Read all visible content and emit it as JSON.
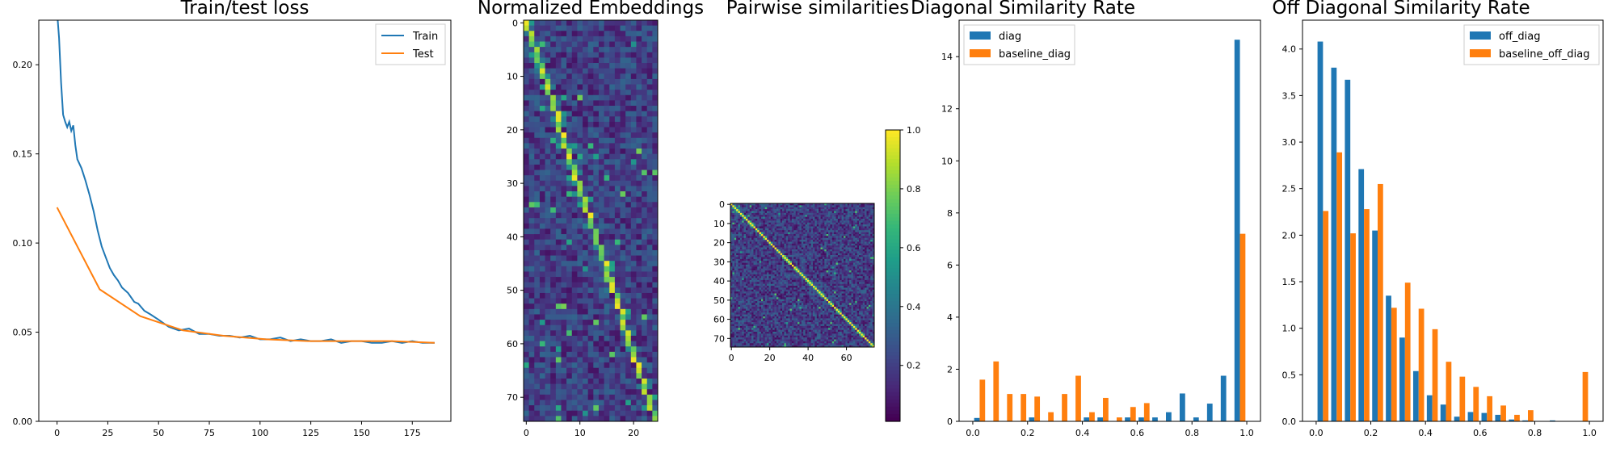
{
  "chart_data": [
    {
      "type": "line",
      "title": "Train/test loss",
      "xlabel": "",
      "ylabel": "",
      "xlim": [
        -9,
        194
      ],
      "ylim": [
        0,
        0.225
      ],
      "xticks": [
        0,
        25,
        50,
        75,
        100,
        125,
        150,
        175
      ],
      "yticks": [
        0.0,
        0.05,
        0.1,
        0.15,
        0.2
      ],
      "ytick_labels": [
        "0.00",
        "0.05",
        "0.10",
        "0.15",
        "0.20"
      ],
      "legend_position": "top-right",
      "series": [
        {
          "name": "Train",
          "color": "#1f77b4",
          "x": [
            0,
            1,
            2,
            3,
            4,
            5,
            6,
            7,
            8,
            9,
            10,
            12,
            14,
            16,
            18,
            20,
            22,
            24,
            26,
            28,
            30,
            32,
            35,
            38,
            40,
            43,
            46,
            50,
            55,
            60,
            65,
            70,
            75,
            80,
            85,
            90,
            95,
            100,
            105,
            110,
            115,
            120,
            125,
            130,
            135,
            140,
            145,
            150,
            155,
            160,
            165,
            170,
            175,
            180,
            186
          ],
          "y": [
            0.23,
            0.215,
            0.19,
            0.172,
            0.168,
            0.165,
            0.168,
            0.163,
            0.166,
            0.155,
            0.147,
            0.142,
            0.135,
            0.127,
            0.118,
            0.107,
            0.098,
            0.092,
            0.086,
            0.082,
            0.079,
            0.075,
            0.072,
            0.067,
            0.066,
            0.062,
            0.06,
            0.057,
            0.053,
            0.051,
            0.052,
            0.049,
            0.049,
            0.048,
            0.048,
            0.047,
            0.048,
            0.046,
            0.046,
            0.047,
            0.045,
            0.046,
            0.045,
            0.045,
            0.046,
            0.044,
            0.045,
            0.045,
            0.044,
            0.044,
            0.045,
            0.044,
            0.045,
            0.044,
            0.044
          ]
        },
        {
          "name": "Test",
          "color": "#ff7f0e",
          "x": [
            0,
            21,
            41,
            62,
            82,
            103,
            124,
            144,
            165,
            186
          ],
          "y": [
            0.12,
            0.074,
            0.059,
            0.051,
            0.048,
            0.046,
            0.045,
            0.045,
            0.045,
            0.044
          ]
        }
      ]
    },
    {
      "type": "heatmap",
      "title": "Normalized Embeddings",
      "rows": 75,
      "cols": 25,
      "xticks": [
        0,
        10,
        20
      ],
      "yticks": [
        0,
        10,
        20,
        30,
        40,
        50,
        60,
        70
      ],
      "colormap": "viridis",
      "pattern": "bright diagonal band running from top-left to bottom-right over a dark random background"
    },
    {
      "type": "heatmap",
      "title": "Pairwise similarities",
      "rows": 75,
      "cols": 75,
      "xticks": [
        0,
        20,
        40,
        60
      ],
      "yticks": [
        0,
        10,
        20,
        30,
        40,
        50,
        60,
        70
      ],
      "colormap": "viridis",
      "colorbar_ticks": [
        0.2,
        0.4,
        0.6,
        0.8,
        1.0
      ],
      "colorbar_tick_labels": [
        "0.2",
        "0.4",
        "0.6",
        "0.8",
        "1.0"
      ],
      "pattern": "yellow main diagonal (value 1.0) with low off-diagonal similarities"
    },
    {
      "type": "bar",
      "title": "Diagonal Similarity Rate",
      "xlim": [
        -0.05,
        1.05
      ],
      "ylim": [
        0,
        15.4
      ],
      "xticks": [
        0.0,
        0.2,
        0.4,
        0.6,
        0.8,
        1.0
      ],
      "xtick_labels": [
        "0.0",
        "0.2",
        "0.4",
        "0.6",
        "0.8",
        "1.0"
      ],
      "yticks": [
        0,
        2,
        4,
        6,
        8,
        10,
        12,
        14
      ],
      "legend_position": "top-left",
      "bin_starts": [
        0.0,
        0.05,
        0.1,
        0.15,
        0.2,
        0.25,
        0.3,
        0.35,
        0.4,
        0.45,
        0.5,
        0.55,
        0.6,
        0.65,
        0.7,
        0.75,
        0.8,
        0.85,
        0.9,
        0.95
      ],
      "bin_width": 0.05,
      "series": [
        {
          "name": "diag",
          "color": "#1f77b4",
          "values": [
            0.13,
            0,
            0,
            0,
            0.15,
            0,
            0,
            0,
            0.15,
            0.15,
            0,
            0.15,
            0.15,
            0.15,
            0.35,
            1.07,
            0.15,
            0.68,
            1.75,
            14.65
          ]
        },
        {
          "name": "baseline_diag",
          "color": "#ff7f0e",
          "values": [
            1.6,
            2.3,
            1.05,
            1.05,
            0.95,
            0.35,
            1.05,
            1.75,
            0.35,
            0.9,
            0.15,
            0.55,
            0.7,
            0,
            0,
            0,
            0,
            0,
            0,
            7.2
          ]
        }
      ]
    },
    {
      "type": "bar",
      "title": "Off Diagonal Similarity Rate",
      "xlim": [
        -0.05,
        1.05
      ],
      "ylim": [
        0,
        4.31
      ],
      "xticks": [
        0.0,
        0.2,
        0.4,
        0.6,
        0.8,
        1.0
      ],
      "xtick_labels": [
        "0.0",
        "0.2",
        "0.4",
        "0.6",
        "0.8",
        "1.0"
      ],
      "yticks": [
        0.0,
        0.5,
        1.0,
        1.5,
        2.0,
        2.5,
        3.0,
        3.5,
        4.0
      ],
      "ytick_labels": [
        "0.0",
        "0.5",
        "1.0",
        "1.5",
        "2.0",
        "2.5",
        "3.0",
        "3.5",
        "4.0"
      ],
      "legend_position": "top-right",
      "bin_starts": [
        0.0,
        0.05,
        0.1,
        0.15,
        0.2,
        0.25,
        0.3,
        0.35,
        0.4,
        0.45,
        0.5,
        0.55,
        0.6,
        0.65,
        0.7,
        0.75,
        0.8,
        0.85,
        0.9,
        0.95
      ],
      "bin_width": 0.05,
      "series": [
        {
          "name": "off_diag",
          "color": "#1f77b4",
          "values": [
            4.08,
            3.8,
            3.67,
            2.71,
            2.05,
            1.35,
            0.9,
            0.54,
            0.28,
            0.18,
            0.05,
            0.1,
            0.09,
            0.07,
            0.02,
            0.01,
            0,
            0.01,
            0,
            0
          ]
        },
        {
          "name": "baseline_off_diag",
          "color": "#ff7f0e",
          "values": [
            2.26,
            2.89,
            2.02,
            2.28,
            2.55,
            1.22,
            1.49,
            1.21,
            0.99,
            0.64,
            0.48,
            0.37,
            0.27,
            0.17,
            0.07,
            0.12,
            0,
            0,
            0,
            0.53
          ]
        }
      ]
    }
  ]
}
